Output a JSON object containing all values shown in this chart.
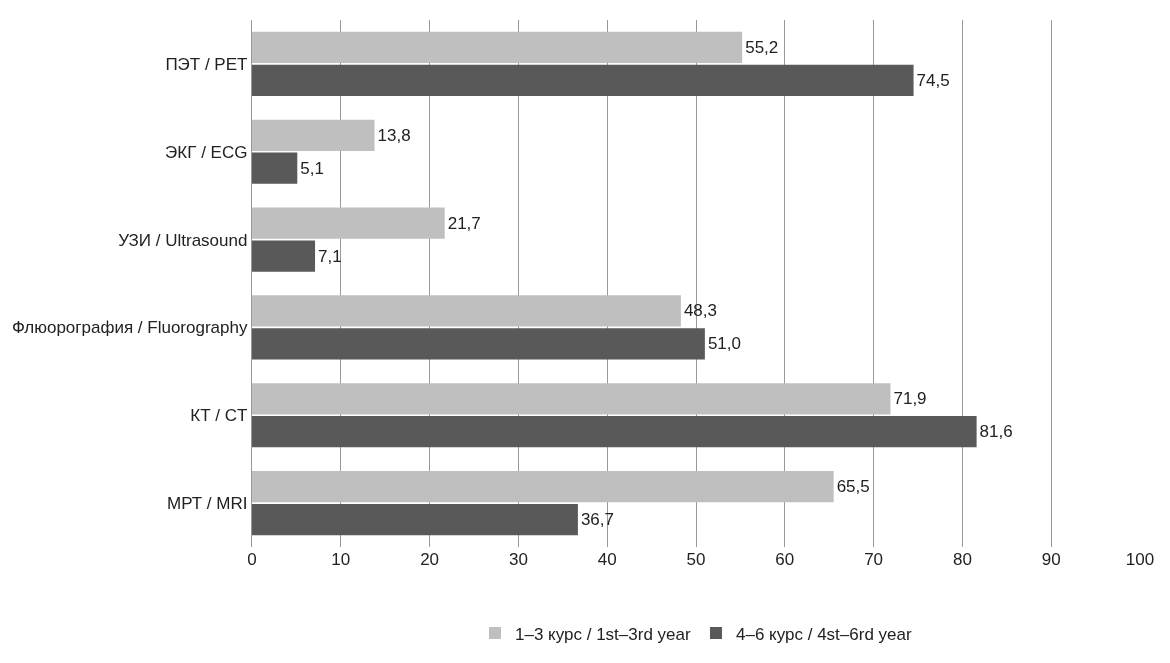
{
  "chart_data": {
    "type": "bar",
    "orientation": "horizontal",
    "categories": [
      "ПЭТ / PET",
      "ЭКГ / ECG",
      "УЗИ / Ultrasound",
      "Флюорография / Fluorography",
      "КТ / CT",
      "МРТ / MRI"
    ],
    "series": [
      {
        "name": "1–3 курс / 1st–3rd year",
        "color": "#bfbfbf",
        "values": [
          55.2,
          13.8,
          21.7,
          48.3,
          71.9,
          65.5
        ],
        "value_labels": [
          "55,2",
          "13,8",
          "21,7",
          "48,3",
          "71,9",
          "65,5"
        ]
      },
      {
        "name": "4–6 курс / 4st–6rd year",
        "color": "#595959",
        "values": [
          74.5,
          5.1,
          7.1,
          51.0,
          81.6,
          36.7
        ],
        "value_labels": [
          "74,5",
          "5,1",
          "7,1",
          "51,0",
          "81,6",
          "36,7"
        ]
      }
    ],
    "xlim": [
      0,
      100
    ],
    "xticks": [
      0,
      10,
      20,
      30,
      40,
      50,
      60,
      70,
      80,
      90,
      100
    ],
    "grid": "x",
    "legend": "bottom"
  }
}
